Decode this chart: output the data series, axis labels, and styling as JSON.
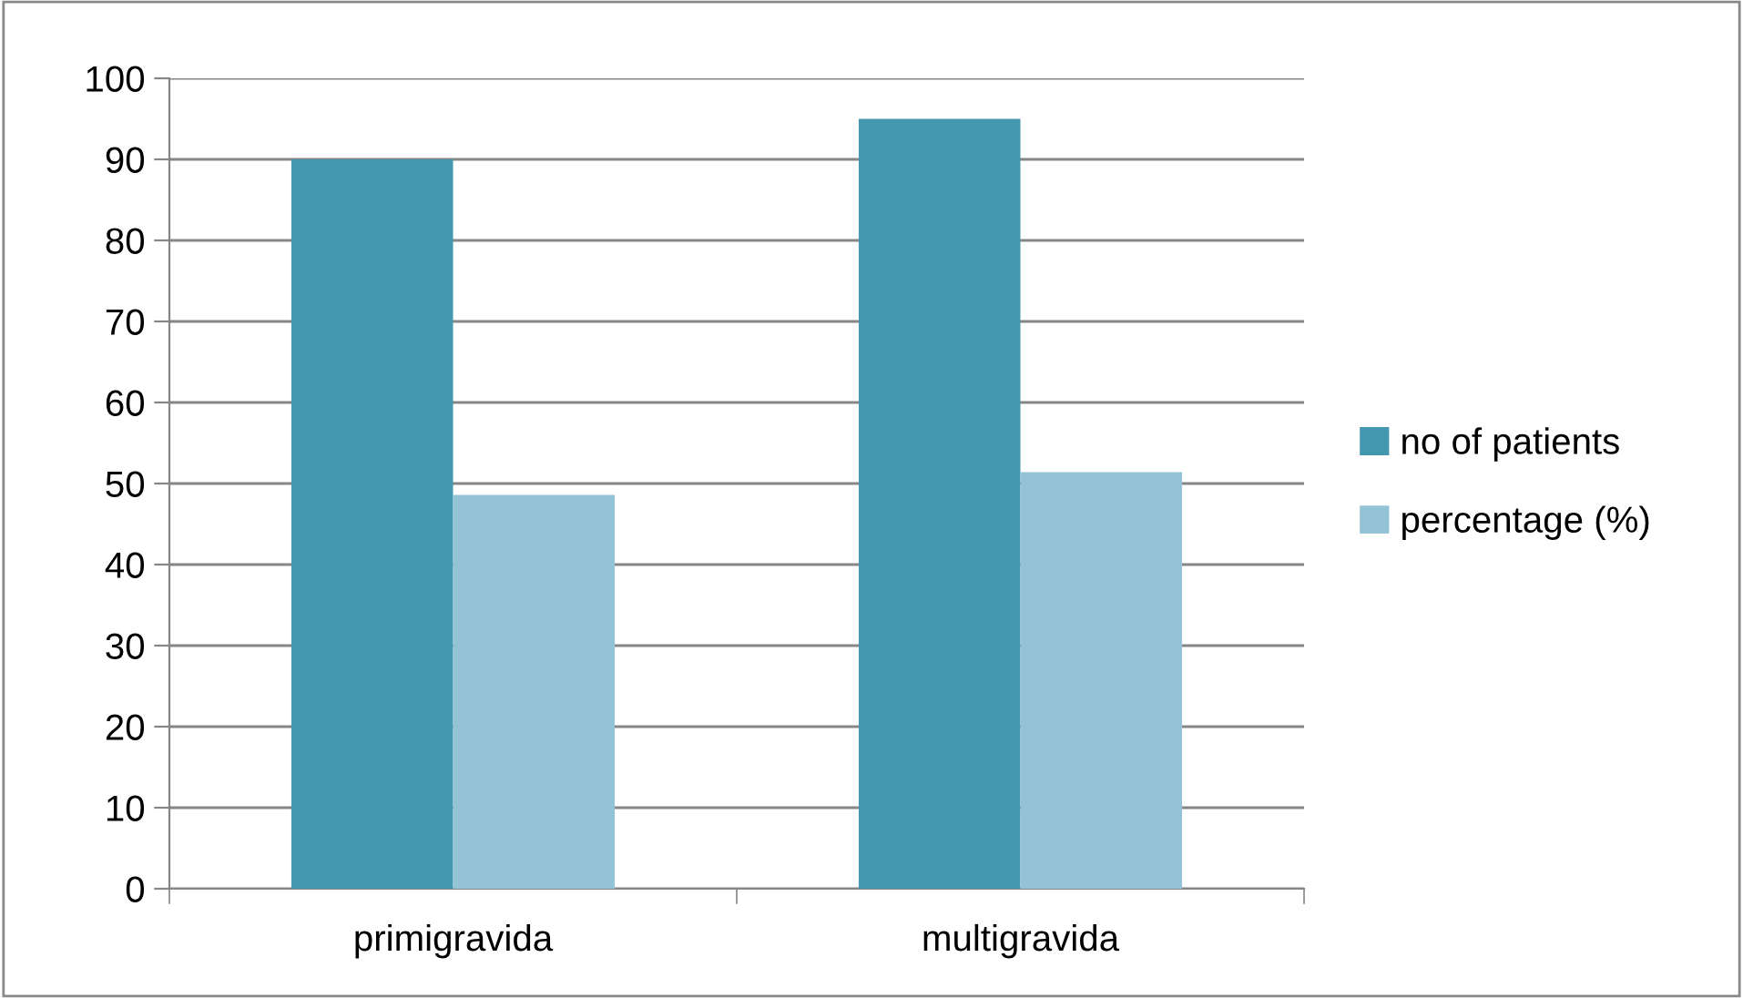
{
  "chart_data": {
    "type": "bar",
    "categories": [
      "primigravida",
      "multigravida"
    ],
    "series": [
      {
        "name": "no of patients",
        "color": "#4398b0",
        "values": [
          90,
          95
        ]
      },
      {
        "name": "percentage (%)",
        "color": "#93c3d4",
        "values": [
          48.6,
          51.4
        ]
      }
    ],
    "ylim": [
      0,
      100
    ],
    "yticks": [
      0,
      10,
      20,
      30,
      40,
      50,
      60,
      70,
      80,
      90,
      100
    ],
    "grid": "y",
    "legend": "right"
  }
}
